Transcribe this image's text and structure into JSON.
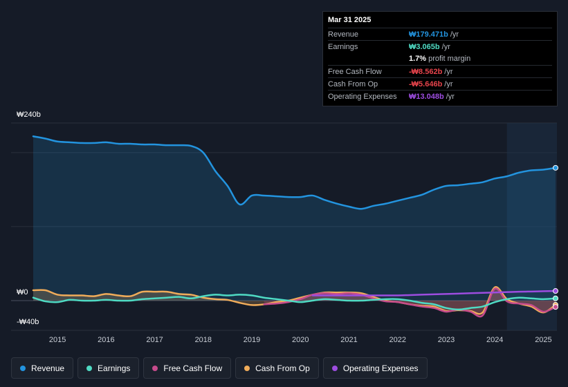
{
  "tooltip": {
    "date": "Mar 31 2025",
    "rows": [
      {
        "label": "Revenue",
        "value": "₩179.471b",
        "unit": "/yr",
        "color": "#2394df"
      },
      {
        "label": "Earnings",
        "value": "₩3.065b",
        "unit": "/yr",
        "color": "#4fdbc4"
      },
      {
        "label": "",
        "value": "1.7%",
        "unit": "profit margin",
        "color": "#ffffff"
      },
      {
        "label": "Free Cash Flow",
        "value": "-₩8.562b",
        "unit": "/yr",
        "color": "#e8444c"
      },
      {
        "label": "Cash From Op",
        "value": "-₩5.646b",
        "unit": "/yr",
        "color": "#e8444c"
      },
      {
        "label": "Operating Expenses",
        "value": "₩13.048b",
        "unit": "/yr",
        "color": "#9d4de0"
      }
    ]
  },
  "legend": [
    {
      "label": "Revenue",
      "color": "#2394df"
    },
    {
      "label": "Earnings",
      "color": "#4fdbc4"
    },
    {
      "label": "Free Cash Flow",
      "color": "#c64b8c"
    },
    {
      "label": "Cash From Op",
      "color": "#f0ac5a"
    },
    {
      "label": "Operating Expenses",
      "color": "#9d4de0"
    }
  ],
  "chart_data": {
    "type": "line",
    "title": "",
    "xlabel": "",
    "ylabel": "",
    "currency_prefix": "₩",
    "ylim": [
      -40,
      240
    ],
    "y_tick_labels": [
      "₩240b",
      "₩0",
      "-₩40b"
    ],
    "x_tick_labels": [
      "2015",
      "2016",
      "2017",
      "2018",
      "2019",
      "2020",
      "2021",
      "2022",
      "2023",
      "2024",
      "2025"
    ],
    "x_ticks": [
      2015,
      2016,
      2017,
      2018,
      2019,
      2020,
      2021,
      2022,
      2023,
      2024,
      2025
    ],
    "xlim": [
      2014.5,
      2025.25
    ],
    "forecast_start": 2024.25,
    "series": [
      {
        "name": "Revenue",
        "color": "#2394df",
        "fill": true,
        "x": [
          2014.5,
          2014.75,
          2015.0,
          2015.25,
          2015.5,
          2015.75,
          2016.0,
          2016.25,
          2016.5,
          2016.75,
          2017.0,
          2017.25,
          2017.5,
          2017.75,
          2018.0,
          2018.25,
          2018.5,
          2018.75,
          2019.0,
          2019.25,
          2019.5,
          2019.75,
          2020.0,
          2020.25,
          2020.5,
          2020.75,
          2021.0,
          2021.25,
          2021.5,
          2021.75,
          2022.0,
          2022.25,
          2022.5,
          2022.75,
          2023.0,
          2023.25,
          2023.5,
          2023.75,
          2024.0,
          2024.25,
          2024.5,
          2024.75,
          2025.0,
          2025.25
        ],
        "values": [
          222,
          219,
          215,
          214,
          213,
          213,
          214,
          212,
          212,
          211,
          211,
          210,
          210,
          209,
          200,
          175,
          155,
          130,
          142,
          142,
          141,
          140,
          140,
          142,
          136,
          131,
          127,
          124,
          128,
          131,
          135,
          139,
          143,
          150,
          155,
          156,
          158,
          160,
          165,
          168,
          173,
          176,
          177,
          179.471
        ]
      },
      {
        "name": "Earnings",
        "color": "#4fdbc4",
        "fill": false,
        "x": [
          2014.5,
          2014.75,
          2015.0,
          2015.25,
          2015.5,
          2015.75,
          2016.0,
          2016.25,
          2016.5,
          2016.75,
          2017.0,
          2017.25,
          2017.5,
          2017.75,
          2018.0,
          2018.25,
          2018.5,
          2018.75,
          2019.0,
          2019.25,
          2019.5,
          2019.75,
          2020.0,
          2020.25,
          2020.5,
          2020.75,
          2021.0,
          2021.25,
          2021.5,
          2021.75,
          2022.0,
          2022.25,
          2022.5,
          2022.75,
          2023.0,
          2023.25,
          2023.5,
          2023.75,
          2024.0,
          2024.25,
          2024.5,
          2024.75,
          2025.0,
          2025.25
        ],
        "values": [
          4,
          -1,
          -2,
          1,
          0,
          0,
          1,
          0,
          0,
          2,
          3,
          4,
          5,
          3,
          6,
          8,
          7,
          8,
          7,
          4,
          2,
          0,
          -2,
          0,
          2,
          1,
          0,
          0,
          1,
          2,
          2,
          0,
          -3,
          -5,
          -10,
          -12,
          -10,
          -8,
          -2,
          2,
          4,
          3,
          2,
          3.065
        ]
      },
      {
        "name": "Free Cash Flow",
        "color": "#c64b8c",
        "fill": true,
        "x": [
          2019.25,
          2019.5,
          2019.75,
          2020.0,
          2020.25,
          2020.5,
          2020.75,
          2021.0,
          2021.25,
          2021.5,
          2021.75,
          2022.0,
          2022.25,
          2022.5,
          2022.75,
          2023.0,
          2023.25,
          2023.5,
          2023.75,
          2024.0,
          2024.25,
          2024.5,
          2024.75,
          2025.0,
          2025.25
        ],
        "values": [
          -5,
          -4,
          -2,
          2,
          8,
          10,
          9,
          10,
          8,
          3,
          -1,
          -2,
          -5,
          -8,
          -10,
          -15,
          -12,
          -15,
          -20,
          16,
          -1,
          -4,
          -6,
          -15,
          -8.562
        ]
      },
      {
        "name": "Cash From Op",
        "color": "#f0ac5a",
        "fill": true,
        "x": [
          2014.5,
          2014.75,
          2015.0,
          2015.25,
          2015.5,
          2015.75,
          2016.0,
          2016.25,
          2016.5,
          2016.75,
          2017.0,
          2017.25,
          2017.5,
          2017.75,
          2018.0,
          2018.25,
          2018.5,
          2018.75,
          2019.0,
          2019.25,
          2019.5,
          2019.75,
          2020.0,
          2020.25,
          2020.5,
          2020.75,
          2021.0,
          2021.25,
          2021.5,
          2021.75,
          2022.0,
          2022.25,
          2022.5,
          2022.75,
          2023.0,
          2023.25,
          2023.5,
          2023.75,
          2024.0,
          2024.25,
          2024.5,
          2024.75,
          2025.0,
          2025.25
        ],
        "values": [
          14,
          14,
          8,
          7,
          7,
          6,
          9,
          7,
          6,
          12,
          12,
          12,
          9,
          8,
          4,
          2,
          1,
          -3,
          -6,
          -5,
          -2,
          0,
          4,
          8,
          11,
          11,
          11,
          10,
          5,
          0,
          -2,
          -5,
          -7,
          -8,
          -14,
          -13,
          -14,
          -16,
          18,
          2,
          -4,
          -8,
          -16,
          -5.646
        ]
      },
      {
        "name": "Operating Expenses",
        "color": "#9d4de0",
        "fill": false,
        "x": [
          2020.25,
          2020.5,
          2020.75,
          2021.0,
          2021.25,
          2021.5,
          2021.75,
          2022.0,
          2022.25,
          2022.5,
          2022.75,
          2023.0,
          2023.25,
          2023.5,
          2023.75,
          2024.0,
          2024.25,
          2024.5,
          2024.75,
          2025.0,
          2025.25
        ],
        "values": [
          7,
          7,
          7,
          7,
          7,
          7,
          7,
          7,
          7.5,
          8,
          8.5,
          9,
          9.5,
          10,
          10.5,
          11,
          11.5,
          12,
          12.3,
          12.7,
          13.048
        ]
      }
    ]
  }
}
